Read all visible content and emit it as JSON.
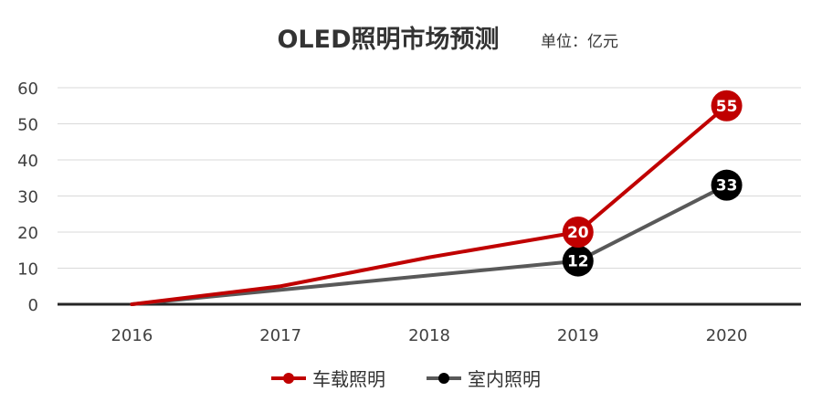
{
  "chart_data": {
    "type": "line",
    "title": "OLED照明市场预测",
    "unit": "单位：亿元",
    "categories": [
      "2016",
      "2017",
      "2018",
      "2019",
      "2020"
    ],
    "ylim": [
      0,
      60
    ],
    "yticks": [
      "0",
      "10",
      "20",
      "30",
      "40",
      "50",
      "60"
    ],
    "grid": true,
    "legend_position": "bottom",
    "series": [
      {
        "name": "车载照明",
        "color": "#C00000",
        "values": [
          0,
          5,
          13,
          20,
          55
        ],
        "labels": {
          "3": "20",
          "4": "55"
        }
      },
      {
        "name": "室内照明",
        "color": "#595959",
        "values": [
          0,
          4,
          8,
          12,
          33
        ],
        "labels": {
          "3": "12",
          "4": "33"
        }
      }
    ]
  }
}
